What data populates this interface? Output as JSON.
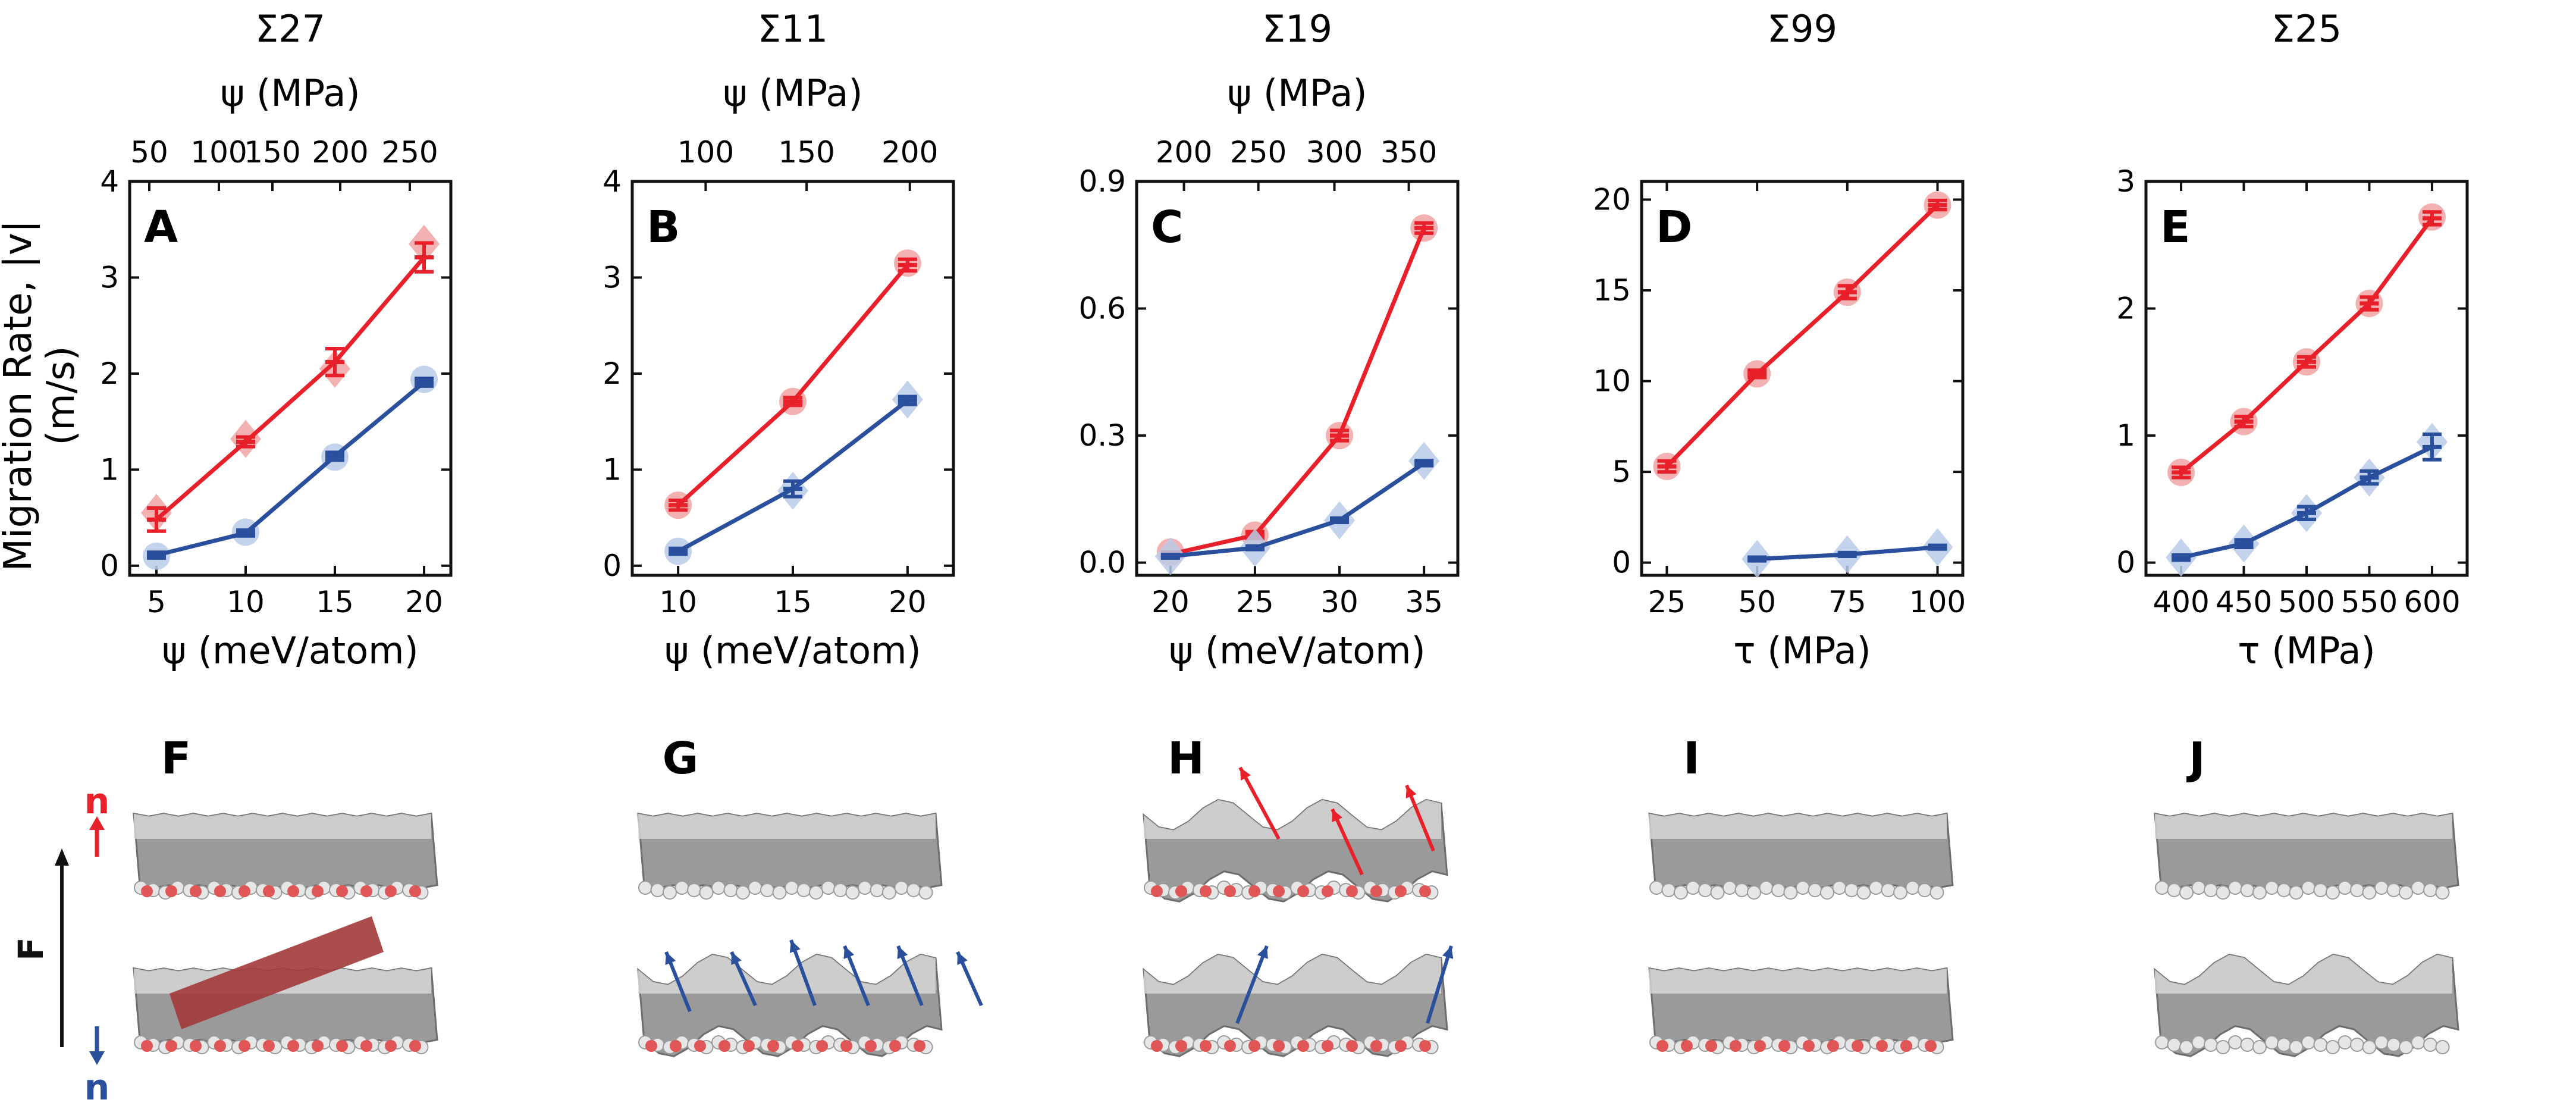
{
  "figure": {
    "shared_ylabel_line1": "Migration Rate, |v|",
    "shared_ylabel_line2": "(m/s)",
    "bottom_panel_letters": [
      "F",
      "G",
      "H",
      "I",
      "J"
    ],
    "side_labels": {
      "n_top": "n",
      "force": "F",
      "n_bottom": "n"
    }
  },
  "colors": {
    "red": "#e8202a",
    "blue": "#2a4f9c",
    "red_marker": "#f2a3a3",
    "blue_marker": "#b8cbe8",
    "atom_gray": "#9a9a9a",
    "atom_red": "#e05555"
  },
  "chart_data": [
    {
      "type": "line",
      "panel": "A",
      "title": "Σ27",
      "xlabel": "ψ (meV/atom)",
      "top_xlabel": "ψ (MPa)",
      "ylabel": "",
      "x": [
        5,
        10,
        15,
        20
      ],
      "xlim": [
        3.5,
        21.5
      ],
      "ylim": [
        -0.1,
        4
      ],
      "xticks": [
        5,
        10,
        15,
        20
      ],
      "yticks": [
        0,
        1,
        2,
        3,
        4
      ],
      "top_ticks": [
        {
          "label": "50",
          "x": 4.6
        },
        {
          "label": "100",
          "x": 8.5
        },
        {
          "label": "150",
          "x": 11.5
        },
        {
          "label": "200",
          "x": 15.3
        },
        {
          "label": "250",
          "x": 19.2
        }
      ],
      "series": [
        {
          "color": "red",
          "values": [
            0.48,
            1.29,
            2.12,
            3.21
          ],
          "errors": [
            0.12,
            0.05,
            0.14,
            0.15
          ],
          "marker_values": [
            0.55,
            1.32,
            2.05,
            3.35
          ],
          "marker_shapes": [
            "diamond",
            "diamond",
            "diamond",
            "diamond"
          ]
        },
        {
          "color": "blue",
          "values": [
            0.11,
            0.34,
            1.14,
            1.91
          ],
          "errors": [
            0.03,
            0.03,
            0.04,
            0.04
          ],
          "marker_values": [
            0.1,
            0.35,
            1.13,
            1.94
          ],
          "marker_shapes": [
            "circle",
            "circle",
            "circle",
            "circle"
          ]
        }
      ]
    },
    {
      "type": "line",
      "panel": "B",
      "title": "Σ11",
      "xlabel": "ψ (meV/atom)",
      "top_xlabel": "ψ (MPa)",
      "ylabel": "",
      "x": [
        10,
        15,
        20
      ],
      "xlim": [
        8,
        22
      ],
      "ylim": [
        -0.1,
        4
      ],
      "xticks": [
        10,
        15,
        20
      ],
      "yticks": [
        0,
        1,
        2,
        3,
        4
      ],
      "top_ticks": [
        {
          "label": "100",
          "x": 11.2
        },
        {
          "label": "150",
          "x": 15.6
        },
        {
          "label": "200",
          "x": 20.1
        }
      ],
      "series": [
        {
          "color": "red",
          "values": [
            0.63,
            1.71,
            3.13
          ],
          "errors": [
            0.05,
            0.04,
            0.06
          ],
          "marker_values": [
            0.63,
            1.71,
            3.15
          ],
          "marker_shapes": [
            "circle",
            "circle",
            "circle"
          ]
        },
        {
          "color": "blue",
          "values": [
            0.15,
            0.8,
            1.72
          ],
          "errors": [
            0.03,
            0.08,
            0.04
          ],
          "marker_values": [
            0.15,
            0.78,
            1.73
          ],
          "marker_shapes": [
            "circle",
            "diamond",
            "diamond"
          ]
        }
      ]
    },
    {
      "type": "line",
      "panel": "C",
      "title": "Σ19",
      "xlabel": "ψ (meV/atom)",
      "top_xlabel": "ψ (MPa)",
      "ylabel": "",
      "x": [
        20,
        25,
        30,
        35
      ],
      "xlim": [
        18,
        37
      ],
      "ylim": [
        -0.03,
        0.9
      ],
      "xticks": [
        20,
        25,
        30,
        35
      ],
      "yticks": [
        0.0,
        0.3,
        0.6,
        0.9
      ],
      "ytick_labels": [
        "0.0",
        "0.3",
        "0.6",
        "0.9"
      ],
      "top_ticks": [
        {
          "label": "200",
          "x": 20.8
        },
        {
          "label": "250",
          "x": 25.2
        },
        {
          "label": "300",
          "x": 29.7
        },
        {
          "label": "350",
          "x": 34.1
        }
      ],
      "series": [
        {
          "color": "red",
          "values": [
            0.02,
            0.065,
            0.3,
            0.79
          ],
          "errors": [
            0.005,
            0.008,
            0.012,
            0.012
          ],
          "marker_values": [
            0.025,
            0.065,
            0.3,
            0.79
          ],
          "marker_shapes": [
            "circle",
            "circle",
            "circle",
            "circle"
          ]
        },
        {
          "color": "blue",
          "values": [
            0.015,
            0.035,
            0.1,
            0.235
          ],
          "errors": [
            0.004,
            0.004,
            0.005,
            0.006
          ],
          "marker_values": [
            0.015,
            0.035,
            0.1,
            0.24
          ],
          "marker_shapes": [
            "diamond",
            "diamond",
            "diamond",
            "diamond"
          ]
        }
      ]
    },
    {
      "type": "line",
      "panel": "D",
      "title": "Σ99",
      "xlabel": "τ (MPa)",
      "top_xlabel": "",
      "ylabel": "",
      "x": [
        25,
        50,
        75,
        100
      ],
      "xlim": [
        18,
        107
      ],
      "ylim": [
        -0.7,
        21
      ],
      "xticks": [
        25,
        50,
        75,
        100
      ],
      "yticks": [
        0,
        5,
        10,
        15,
        20
      ],
      "top_ticks": [],
      "series": [
        {
          "color": "red",
          "values": [
            5.3,
            10.4,
            14.9,
            19.7
          ],
          "errors": [
            0.3,
            0.2,
            0.35,
            0.25
          ],
          "marker_values": [
            5.3,
            10.4,
            14.9,
            19.7
          ],
          "marker_shapes": [
            "circle",
            "circle",
            "circle",
            "circle"
          ]
        },
        {
          "color": "blue",
          "x": [
            50,
            75,
            100
          ],
          "values": [
            0.2,
            0.45,
            0.85
          ],
          "errors": [
            0.1,
            0.1,
            0.1
          ],
          "marker_values": [
            0.2,
            0.45,
            0.85
          ],
          "marker_shapes": [
            "diamond",
            "diamond",
            "diamond"
          ]
        }
      ]
    },
    {
      "type": "line",
      "panel": "E",
      "title": "Σ25",
      "xlabel": "τ (MPa)",
      "top_xlabel": "",
      "ylabel": "",
      "x": [
        400,
        450,
        500,
        550,
        600
      ],
      "xlim": [
        372,
        628
      ],
      "ylim": [
        -0.1,
        3
      ],
      "xticks": [
        400,
        450,
        500,
        550,
        600
      ],
      "yticks": [
        0,
        1,
        2,
        3
      ],
      "top_ticks": [],
      "series": [
        {
          "color": "red",
          "values": [
            0.71,
            1.11,
            1.58,
            2.04,
            2.71
          ],
          "errors": [
            0.04,
            0.04,
            0.04,
            0.05,
            0.05
          ],
          "marker_values": [
            0.71,
            1.11,
            1.58,
            2.04,
            2.72
          ],
          "marker_shapes": [
            "circle",
            "circle",
            "circle",
            "circle",
            "circle"
          ]
        },
        {
          "color": "blue",
          "values": [
            0.04,
            0.15,
            0.39,
            0.67,
            0.91
          ],
          "errors": [
            0.02,
            0.03,
            0.05,
            0.05,
            0.1
          ],
          "marker_values": [
            0.04,
            0.15,
            0.39,
            0.67,
            0.95
          ],
          "marker_shapes": [
            "diamond",
            "diamond",
            "diamond",
            "diamond",
            "diamond"
          ]
        }
      ]
    }
  ]
}
